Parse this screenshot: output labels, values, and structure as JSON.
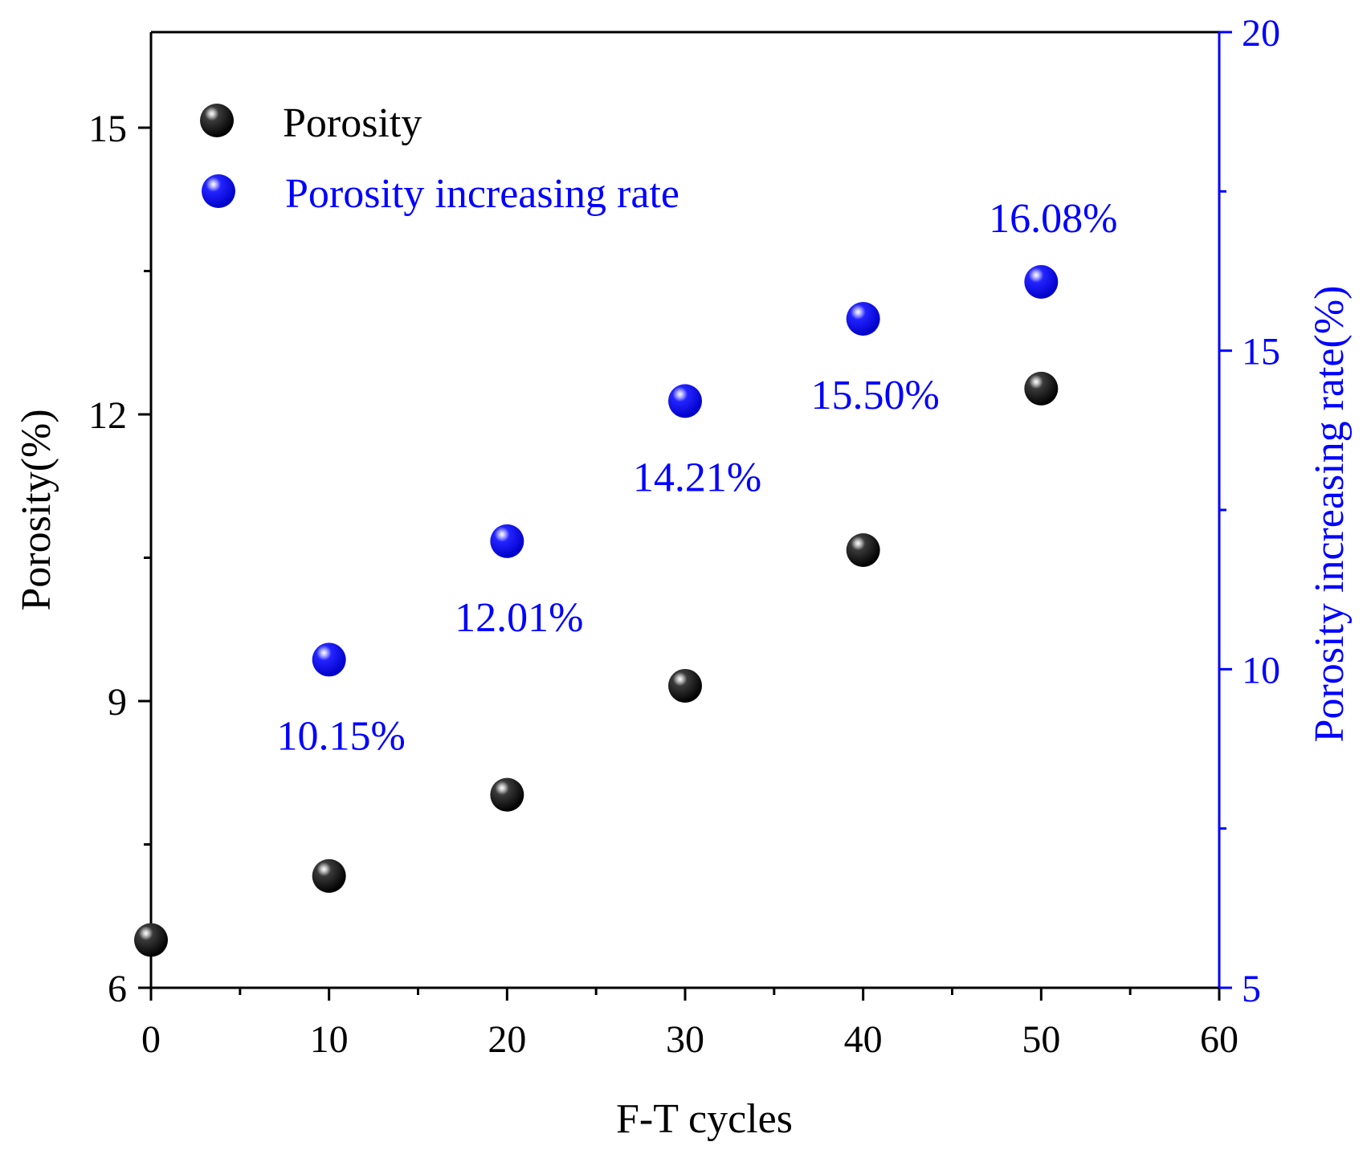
{
  "chart_data": {
    "type": "scatter",
    "xlabel": "F-T cycles",
    "ylabel_left": "Porosity(%)",
    "ylabel_right": "Porosity increasing rate(%)",
    "xlim": [
      0,
      60
    ],
    "ylim_left": [
      6,
      16
    ],
    "ylim_right": [
      5,
      20
    ],
    "x_ticks": [
      "0",
      "10",
      "20",
      "30",
      "40",
      "50",
      "60"
    ],
    "y_left_ticks": [
      "6",
      "9",
      "12",
      "15"
    ],
    "y_right_ticks": [
      "5",
      "10",
      "15",
      "20"
    ],
    "grid": false,
    "legend_position": "top-left",
    "series": [
      {
        "name": "Porosity",
        "axis": "left",
        "color": "#000000",
        "x": [
          0,
          10,
          20,
          30,
          40,
          50
        ],
        "y": [
          6.5,
          7.17,
          8.02,
          9.16,
          10.58,
          12.27
        ]
      },
      {
        "name": "Porosity increasing rate",
        "axis": "right",
        "color": "#0000ff",
        "x": [
          10,
          20,
          30,
          40,
          50
        ],
        "y": [
          10.15,
          12.01,
          14.21,
          15.5,
          16.08
        ],
        "labels": [
          "10.15%",
          "12.01%",
          "14.21%",
          "15.50%",
          "16.08%"
        ]
      }
    ],
    "right_axis_color": "#0000ff"
  }
}
